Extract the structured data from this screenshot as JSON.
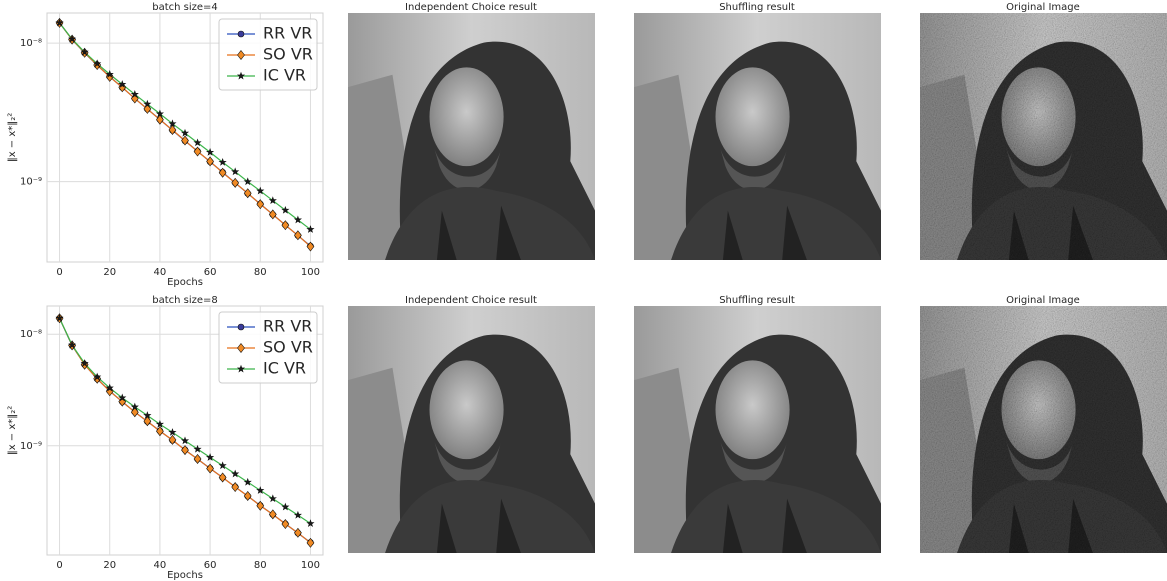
{
  "chart_data": [
    {
      "type": "line",
      "title": "batch size=4",
      "x_label": "Epochs",
      "y_label": "‖x − x*‖₂²",
      "x": [
        0,
        5,
        10,
        15,
        20,
        25,
        30,
        35,
        40,
        45,
        50,
        55,
        60,
        65,
        70,
        75,
        80,
        85,
        90,
        95,
        100
      ],
      "xlim": [
        -5,
        105
      ],
      "xticks": [
        0,
        20,
        40,
        60,
        80,
        100
      ],
      "ylim": [
        2.63e-10,
        1.65e-08
      ],
      "log_y": true,
      "grid": true,
      "legend": "upper right",
      "yticks": [
        {
          "value": 1e-08,
          "label": "10⁻⁸"
        },
        {
          "value": 1e-09,
          "label": "10⁻⁹"
        }
      ],
      "series": [
        {
          "name": "RR VR",
          "color": "#2a52be",
          "marker_color": "#3b3b9a",
          "marker": "circle",
          "values": [
            1.4e-08,
            1.06e-08,
            8.49e-09,
            6.93e-09,
            5.73e-09,
            4.78e-09,
            3.99e-09,
            3.34e-09,
            2.81e-09,
            2.35e-09,
            1.97e-09,
            1.66e-09,
            1.39e-09,
            1.17e-09,
            9.79e-10,
            8.22e-10,
            6.9e-10,
            5.79e-10,
            4.86e-10,
            4.08e-10,
            3.43e-10
          ]
        },
        {
          "name": "SO VR",
          "color": "#e8711a",
          "marker_color": "#f08a24",
          "marker": "diamond",
          "values": [
            1.4e-08,
            1.06e-08,
            8.52e-09,
            6.95e-09,
            5.7e-09,
            4.8e-09,
            3.98e-09,
            3.35e-09,
            2.8e-09,
            2.36e-09,
            1.98e-09,
            1.65e-09,
            1.4e-09,
            1.16e-09,
            9.8e-10,
            8.25e-10,
            6.88e-10,
            5.8e-10,
            4.85e-10,
            4.1e-10,
            3.4e-10
          ]
        },
        {
          "name": "IC VR",
          "color": "#3cb44b",
          "marker_color": "#1a1a1a",
          "marker": "star",
          "values": [
            1.4e-08,
            1.07e-08,
            8.61e-09,
            7.11e-09,
            5.96e-09,
            5.04e-09,
            4.27e-09,
            3.63e-09,
            3.09e-09,
            2.62e-09,
            2.24e-09,
            1.91e-09,
            1.63e-09,
            1.38e-09,
            1.18e-09,
            1e-09,
            8.57e-10,
            7.3e-10,
            6.22e-10,
            5.3e-10,
            4.52e-10
          ]
        }
      ]
    },
    {
      "type": "line",
      "title": "batch size=8",
      "x_label": "Epochs",
      "y_label": "‖x − x*‖₂²",
      "x": [
        0,
        5,
        10,
        15,
        20,
        25,
        30,
        35,
        40,
        45,
        50,
        55,
        60,
        65,
        70,
        75,
        80,
        85,
        90,
        95,
        100
      ],
      "xlim": [
        -5,
        105
      ],
      "xticks": [
        0,
        20,
        40,
        60,
        80,
        100
      ],
      "ylim": [
        1.05e-10,
        1.79e-08
      ],
      "log_y": true,
      "grid": true,
      "legend": "upper right",
      "yticks": [
        {
          "value": 1e-08,
          "label": "10⁻⁸"
        },
        {
          "value": 1e-09,
          "label": "10⁻⁹"
        }
      ],
      "series": [
        {
          "name": "RR VR",
          "color": "#2a52be",
          "marker_color": "#3b3b9a",
          "marker": "circle",
          "values": [
            1.39e-08,
            7.91e-09,
            5.35e-09,
            3.97e-09,
            3.1e-09,
            2.48e-09,
            2.01e-09,
            1.65e-09,
            1.36e-09,
            1.12e-09,
            9.2e-10,
            7.6e-10,
            6.28e-10,
            5.19e-10,
            4.29e-10,
            3.54e-10,
            2.92e-10,
            2.42e-10,
            2e-10,
            1.65e-10,
            1.36e-10
          ]
        },
        {
          "name": "SO VR",
          "color": "#e8711a",
          "marker_color": "#f08a24",
          "marker": "diamond",
          "values": [
            1.39e-08,
            7.95e-09,
            5.33e-09,
            3.99e-09,
            3.08e-09,
            2.49e-09,
            2e-09,
            1.66e-09,
            1.35e-09,
            1.13e-09,
            9.15e-10,
            7.62e-10,
            6.25e-10,
            5.2e-10,
            4.27e-10,
            3.55e-10,
            2.9e-10,
            2.43e-10,
            1.99e-10,
            1.66e-10,
            1.35e-10
          ]
        },
        {
          "name": "IC VR",
          "color": "#3cb44b",
          "marker_color": "#1a1a1a",
          "marker": "star",
          "values": [
            1.39e-08,
            8e-09,
            5.48e-09,
            4.14e-09,
            3.3e-09,
            2.69e-09,
            2.23e-09,
            1.87e-09,
            1.56e-09,
            1.32e-09,
            1.11e-09,
            9.33e-10,
            7.87e-10,
            6.64e-10,
            5.6e-10,
            4.72e-10,
            3.98e-10,
            3.36e-10,
            2.83e-10,
            2.39e-10,
            2.01e-10
          ]
        }
      ]
    }
  ],
  "images": [
    {
      "title": "Independent Choice result"
    },
    {
      "title": "Shuffling result"
    },
    {
      "title": "Original Image"
    },
    {
      "title": "Independent Choice result"
    },
    {
      "title": "Shuffling result"
    },
    {
      "title": "Original Image"
    }
  ]
}
